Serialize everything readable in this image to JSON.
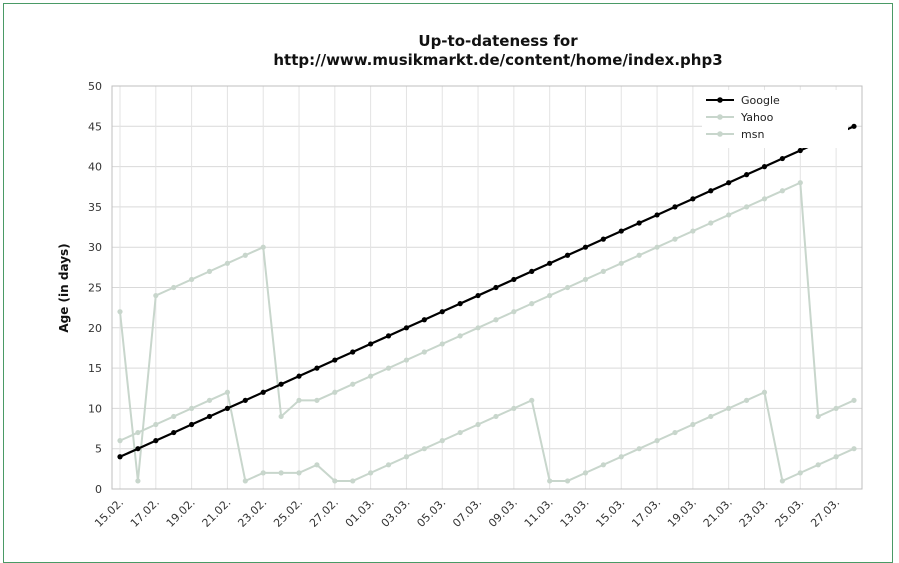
{
  "chart_data": {
    "type": "line",
    "title": "Up-to-dateness for",
    "subtitle": "http://www.musikmarkt.de/content/home/index.php3",
    "xlabel": "",
    "ylabel": "Age (in days)",
    "ylim": [
      0,
      50
    ],
    "yticks": [
      "0",
      "5",
      "10",
      "15",
      "20",
      "25",
      "30",
      "35",
      "40",
      "45",
      "50"
    ],
    "grid": true,
    "legend_position": "top-right",
    "x_labels": [
      "15.02.",
      "17.02.",
      "19.02.",
      "21.02.",
      "23.02.",
      "25.02.",
      "27.02.",
      "01.03.",
      "03.03.",
      "05.03.",
      "07.03.",
      "09.03.",
      "11.03.",
      "13.03.",
      "15.03.",
      "17.03.",
      "19.03.",
      "21.03.",
      "23.03.",
      "25.03.",
      "27.03."
    ],
    "x_label_index": [
      0,
      2,
      4,
      6,
      8,
      10,
      12,
      14,
      16,
      18,
      20,
      22,
      24,
      26,
      28,
      30,
      32,
      34,
      36,
      38,
      40
    ],
    "series": [
      {
        "name": "Google",
        "color": "#000000",
        "values": [
          4,
          5,
          6,
          7,
          8,
          9,
          10,
          11,
          12,
          13,
          14,
          15,
          16,
          17,
          18,
          19,
          20,
          21,
          22,
          23,
          24,
          25,
          26,
          27,
          28,
          29,
          30,
          31,
          32,
          33,
          34,
          35,
          36,
          37,
          38,
          39,
          40,
          41,
          42,
          43,
          44,
          45
        ]
      },
      {
        "name": "Yahoo",
        "color": "#c8d6cc",
        "values": [
          22,
          1,
          24,
          25,
          26,
          27,
          28,
          29,
          30,
          9,
          11,
          11,
          12,
          13,
          14,
          15,
          16,
          17,
          18,
          19,
          20,
          21,
          22,
          23,
          24,
          25,
          26,
          27,
          28,
          29,
          30,
          31,
          32,
          33,
          34,
          35,
          36,
          37,
          38,
          9,
          10,
          11
        ]
      },
      {
        "name": "msn",
        "color": "#c8d6cc",
        "values": [
          6,
          7,
          8,
          9,
          10,
          11,
          12,
          1,
          2,
          2,
          2,
          3,
          1,
          1,
          2,
          3,
          4,
          5,
          6,
          7,
          8,
          9,
          10,
          11,
          1,
          1,
          2,
          3,
          4,
          5,
          6,
          7,
          8,
          9,
          10,
          11,
          12,
          1,
          2,
          3,
          4,
          5
        ]
      }
    ]
  }
}
